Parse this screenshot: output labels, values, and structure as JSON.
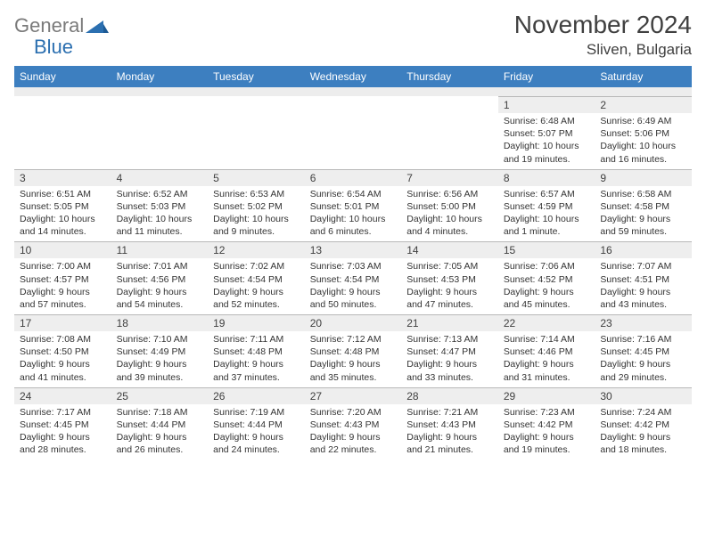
{
  "brand": {
    "part1": "General",
    "part2": "Blue"
  },
  "title": "November 2024",
  "location": "Sliven, Bulgaria",
  "colors": {
    "header_bg": "#3d7fc0",
    "header_text": "#ffffff",
    "daynum_bg": "#eeeeee",
    "border": "#b8b8b8",
    "text": "#333333",
    "title_text": "#404040"
  },
  "day_names": [
    "Sunday",
    "Monday",
    "Tuesday",
    "Wednesday",
    "Thursday",
    "Friday",
    "Saturday"
  ],
  "weeks": [
    [
      null,
      null,
      null,
      null,
      null,
      {
        "n": "1",
        "sr": "6:48 AM",
        "ss": "5:07 PM",
        "dl": "10 hours and 19 minutes."
      },
      {
        "n": "2",
        "sr": "6:49 AM",
        "ss": "5:06 PM",
        "dl": "10 hours and 16 minutes."
      }
    ],
    [
      {
        "n": "3",
        "sr": "6:51 AM",
        "ss": "5:05 PM",
        "dl": "10 hours and 14 minutes."
      },
      {
        "n": "4",
        "sr": "6:52 AM",
        "ss": "5:03 PM",
        "dl": "10 hours and 11 minutes."
      },
      {
        "n": "5",
        "sr": "6:53 AM",
        "ss": "5:02 PM",
        "dl": "10 hours and 9 minutes."
      },
      {
        "n": "6",
        "sr": "6:54 AM",
        "ss": "5:01 PM",
        "dl": "10 hours and 6 minutes."
      },
      {
        "n": "7",
        "sr": "6:56 AM",
        "ss": "5:00 PM",
        "dl": "10 hours and 4 minutes."
      },
      {
        "n": "8",
        "sr": "6:57 AM",
        "ss": "4:59 PM",
        "dl": "10 hours and 1 minute."
      },
      {
        "n": "9",
        "sr": "6:58 AM",
        "ss": "4:58 PM",
        "dl": "9 hours and 59 minutes."
      }
    ],
    [
      {
        "n": "10",
        "sr": "7:00 AM",
        "ss": "4:57 PM",
        "dl": "9 hours and 57 minutes."
      },
      {
        "n": "11",
        "sr": "7:01 AM",
        "ss": "4:56 PM",
        "dl": "9 hours and 54 minutes."
      },
      {
        "n": "12",
        "sr": "7:02 AM",
        "ss": "4:54 PM",
        "dl": "9 hours and 52 minutes."
      },
      {
        "n": "13",
        "sr": "7:03 AM",
        "ss": "4:54 PM",
        "dl": "9 hours and 50 minutes."
      },
      {
        "n": "14",
        "sr": "7:05 AM",
        "ss": "4:53 PM",
        "dl": "9 hours and 47 minutes."
      },
      {
        "n": "15",
        "sr": "7:06 AM",
        "ss": "4:52 PM",
        "dl": "9 hours and 45 minutes."
      },
      {
        "n": "16",
        "sr": "7:07 AM",
        "ss": "4:51 PM",
        "dl": "9 hours and 43 minutes."
      }
    ],
    [
      {
        "n": "17",
        "sr": "7:08 AM",
        "ss": "4:50 PM",
        "dl": "9 hours and 41 minutes."
      },
      {
        "n": "18",
        "sr": "7:10 AM",
        "ss": "4:49 PM",
        "dl": "9 hours and 39 minutes."
      },
      {
        "n": "19",
        "sr": "7:11 AM",
        "ss": "4:48 PM",
        "dl": "9 hours and 37 minutes."
      },
      {
        "n": "20",
        "sr": "7:12 AM",
        "ss": "4:48 PM",
        "dl": "9 hours and 35 minutes."
      },
      {
        "n": "21",
        "sr": "7:13 AM",
        "ss": "4:47 PM",
        "dl": "9 hours and 33 minutes."
      },
      {
        "n": "22",
        "sr": "7:14 AM",
        "ss": "4:46 PM",
        "dl": "9 hours and 31 minutes."
      },
      {
        "n": "23",
        "sr": "7:16 AM",
        "ss": "4:45 PM",
        "dl": "9 hours and 29 minutes."
      }
    ],
    [
      {
        "n": "24",
        "sr": "7:17 AM",
        "ss": "4:45 PM",
        "dl": "9 hours and 28 minutes."
      },
      {
        "n": "25",
        "sr": "7:18 AM",
        "ss": "4:44 PM",
        "dl": "9 hours and 26 minutes."
      },
      {
        "n": "26",
        "sr": "7:19 AM",
        "ss": "4:44 PM",
        "dl": "9 hours and 24 minutes."
      },
      {
        "n": "27",
        "sr": "7:20 AM",
        "ss": "4:43 PM",
        "dl": "9 hours and 22 minutes."
      },
      {
        "n": "28",
        "sr": "7:21 AM",
        "ss": "4:43 PM",
        "dl": "9 hours and 21 minutes."
      },
      {
        "n": "29",
        "sr": "7:23 AM",
        "ss": "4:42 PM",
        "dl": "9 hours and 19 minutes."
      },
      {
        "n": "30",
        "sr": "7:24 AM",
        "ss": "4:42 PM",
        "dl": "9 hours and 18 minutes."
      }
    ]
  ],
  "labels": {
    "sunrise": "Sunrise:",
    "sunset": "Sunset:",
    "daylight": "Daylight:"
  }
}
